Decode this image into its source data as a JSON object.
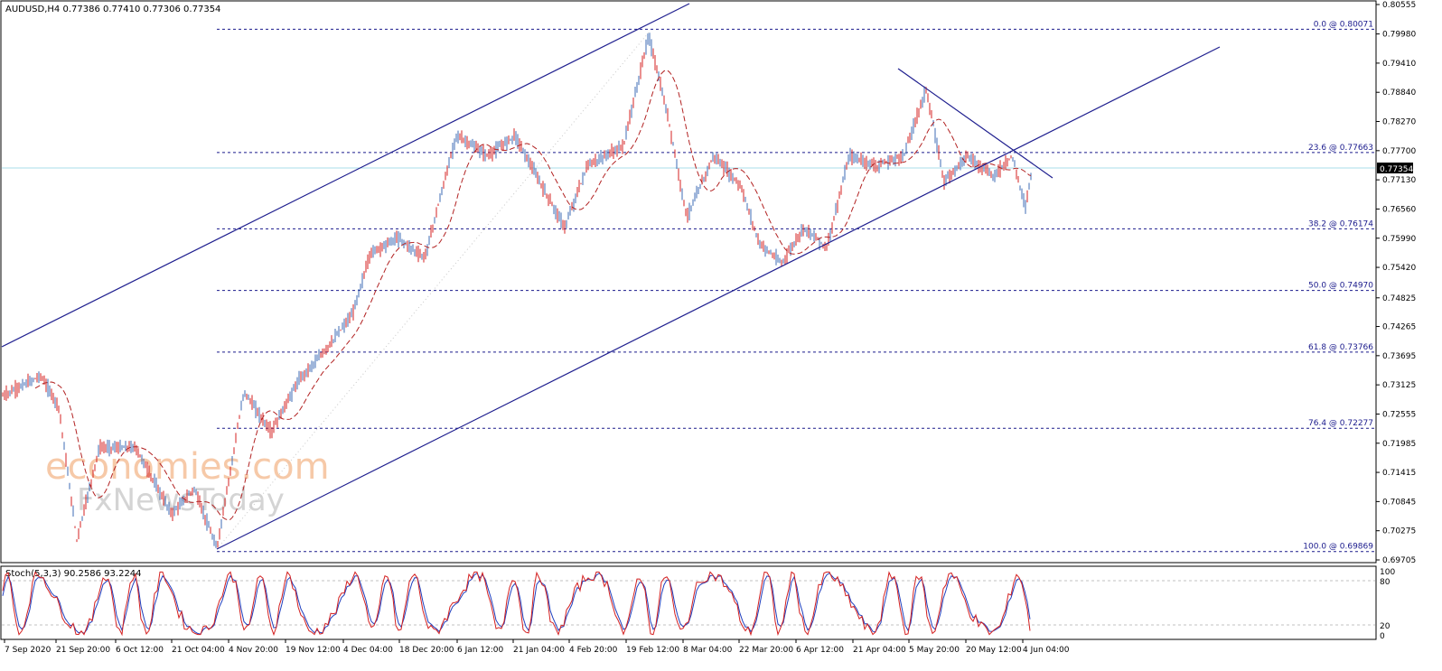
{
  "main_chart": {
    "symbol_info": "AUDUSD,H4  0.77386 0.77410 0.77306 0.77354",
    "current_price": "0.77354",
    "ylim": [
      0.69705,
      0.80555
    ],
    "y_ticks": [
      "0.80555",
      "0.79980",
      "0.79410",
      "0.78840",
      "0.78270",
      "0.77700",
      "0.77130",
      "0.76560",
      "0.75990",
      "0.75420",
      "0.74825",
      "0.74265",
      "0.73695",
      "0.73125",
      "0.72555",
      "0.71985",
      "0.71415",
      "0.70845",
      "0.70275",
      "0.69705"
    ],
    "fib_levels": [
      {
        "label": "0.0 @ 0.80071",
        "price": 0.80071
      },
      {
        "label": "23.6 @ 0.77663",
        "price": 0.77663
      },
      {
        "label": "38.2 @ 0.76174",
        "price": 0.76174
      },
      {
        "label": "50.0 @ 0.74970",
        "price": 0.7497
      },
      {
        "label": "61.8 @ 0.73766",
        "price": 0.73766
      },
      {
        "label": "76.4 @ 0.72277",
        "price": 0.72277
      },
      {
        "label": "100.0 @ 0.69869",
        "price": 0.69869
      }
    ],
    "colors": {
      "up": "#3d6bb5",
      "down": "#d42020",
      "ma": "#b22222",
      "trend": "#1f1f8f",
      "current_line": "#a8dde9"
    }
  },
  "watermark": {
    "line1": "economies.com",
    "line2": "FxNewsToday"
  },
  "oscillator": {
    "label": "Stoch(5,3,3) 90.2586 93.2244",
    "levels": [
      "100",
      "80",
      "20",
      "0"
    ],
    "colors": {
      "main": "#d42020",
      "signal": "#1f3fbf"
    }
  },
  "x_ticks": [
    "7 Sep 2020",
    "21 Sep 20:00",
    "6 Oct 12:00",
    "21 Oct 04:00",
    "4 Nov 20:00",
    "19 Nov 12:00",
    "4 Dec 04:00",
    "18 Dec 20:00",
    "6 Jan 12:00",
    "21 Jan 04:00",
    "4 Feb 20:00",
    "19 Feb 12:00",
    "8 Mar 04:00",
    "22 Mar 20:00",
    "6 Apr 12:00",
    "21 Apr 04:00",
    "5 May 20:00",
    "20 May 12:00",
    "4 Jun 04:00"
  ]
}
